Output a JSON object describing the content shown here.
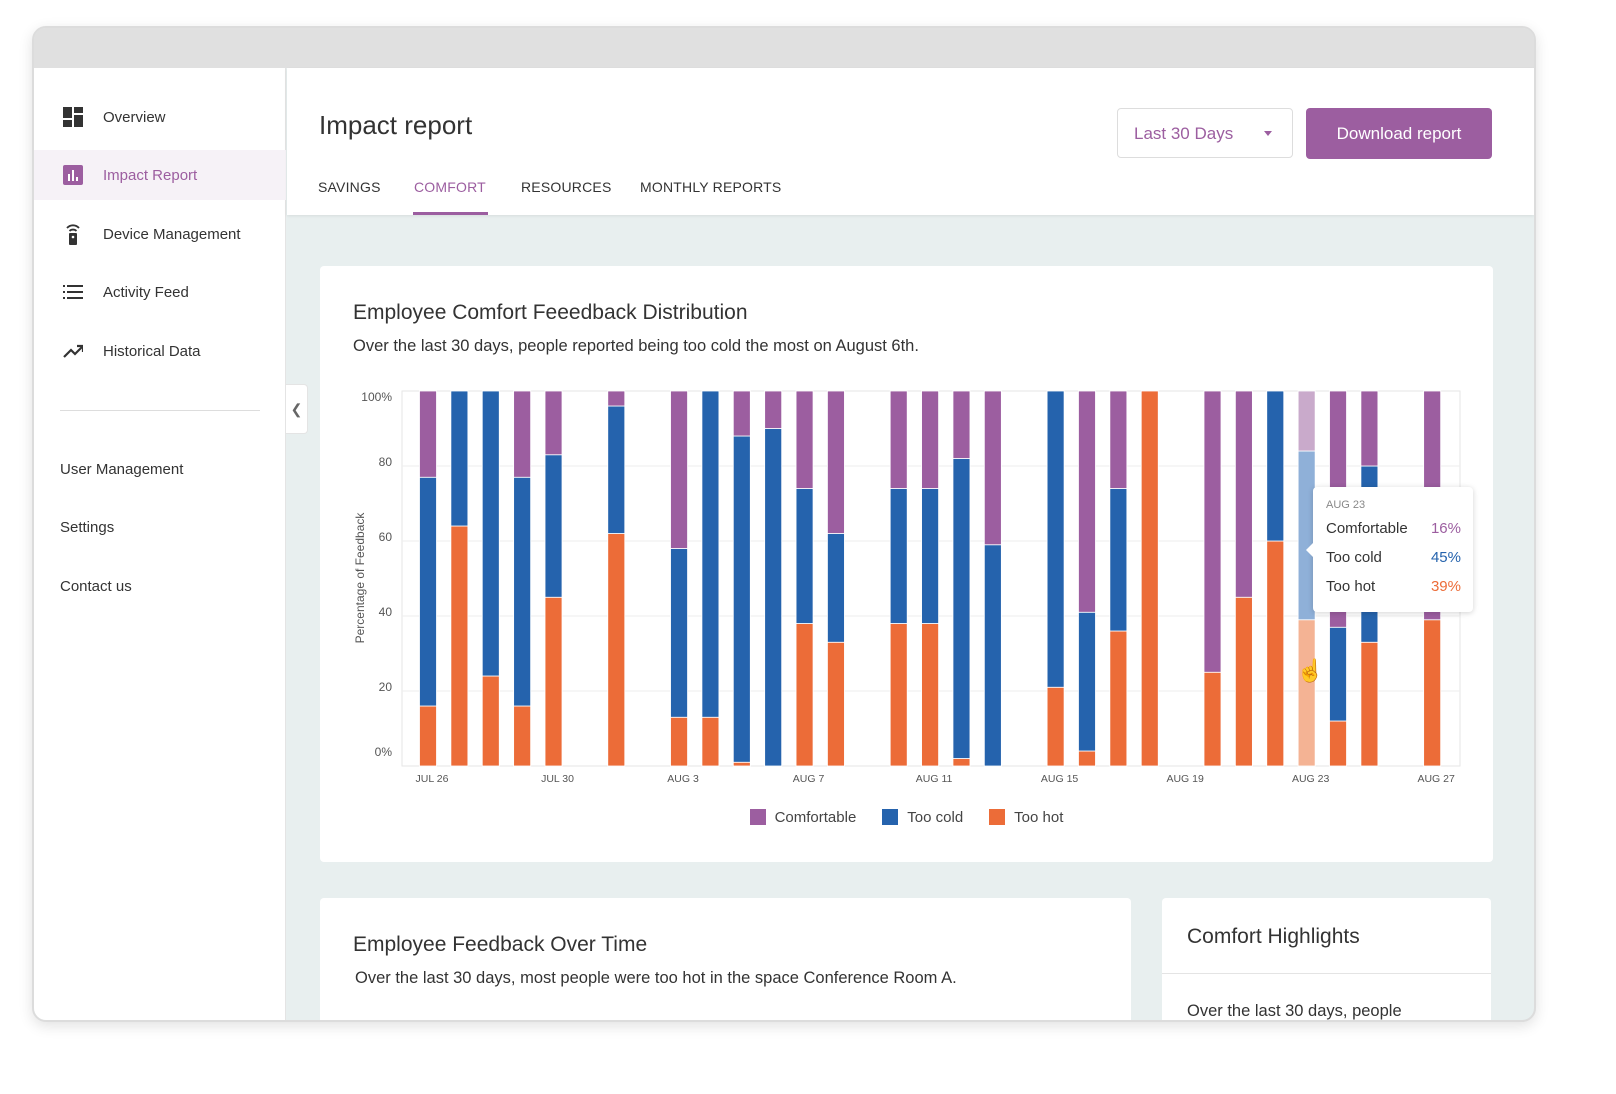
{
  "sidebar": {
    "items": [
      {
        "label": "Overview",
        "icon": "dashboard-icon"
      },
      {
        "label": "Impact Report",
        "icon": "bar-chart-icon",
        "active": true
      },
      {
        "label": "Device Management",
        "icon": "remote-icon"
      },
      {
        "label": "Activity Feed",
        "icon": "list-icon"
      },
      {
        "label": "Historical Data",
        "icon": "trending-icon"
      }
    ],
    "links": [
      "User Management",
      "Settings",
      "Contact us"
    ]
  },
  "header": {
    "title": "Impact report",
    "tabs": [
      "SAVINGS",
      "COMFORT",
      "RESOURCES",
      "MONTHLY REPORTS"
    ],
    "active_tab": "COMFORT",
    "range": "Last 30 Days",
    "download": "Download report"
  },
  "colors": {
    "accent": "#9c5ea0",
    "comfortable": "#9c5ea0",
    "too_cold": "#2563ad",
    "too_hot": "#ec6c38"
  },
  "card1": {
    "title": "Employee Comfort Feeedback Distribution",
    "subtitle": "Over the last 30 days, people reported being too cold the most on August 6th."
  },
  "chart_data": {
    "type": "bar",
    "stacked": true,
    "ylabel": "Percentage of Feedback",
    "ylim": [
      0,
      100
    ],
    "yticks": [
      "0%",
      "20",
      "40",
      "60",
      "80",
      "100%"
    ],
    "grid": true,
    "xticks": [
      "JUL 26",
      "JUL 30",
      "AUG 3",
      "AUG 7",
      "AUG 11",
      "AUG 15",
      "AUG 19",
      "AUG 23",
      "AUG 27"
    ],
    "categories": [
      "Jul 26",
      "Jul 27",
      "Jul 28",
      "Jul 29",
      "Jul 30",
      "Jul 31",
      "Aug 1",
      "Aug 2",
      "Aug 3",
      "Aug 4",
      "Aug 5",
      "Aug 6",
      "Aug 7",
      "Aug 8",
      "Aug 9",
      "Aug 10",
      "Aug 11",
      "Aug 12",
      "Aug 13",
      "Aug 14",
      "Aug 15",
      "Aug 16",
      "Aug 17",
      "Aug 18",
      "Aug 19",
      "Aug 20",
      "Aug 21",
      "Aug 22",
      "Aug 23",
      "Aug 24",
      "Aug 25",
      "Aug 26",
      "Aug 27"
    ],
    "series": [
      {
        "name": "Too hot",
        "values": [
          16,
          64,
          24,
          16,
          45,
          null,
          62,
          null,
          13,
          13,
          1,
          0,
          38,
          33,
          null,
          38,
          38,
          2,
          0,
          null,
          21,
          4,
          36,
          100,
          null,
          25,
          45,
          60,
          39,
          12,
          33,
          null,
          39
        ]
      },
      {
        "name": "Too cold",
        "values": [
          61,
          36,
          76,
          61,
          38,
          null,
          34,
          null,
          45,
          87,
          87,
          90,
          36,
          29,
          null,
          36,
          36,
          80,
          59,
          null,
          79,
          37,
          38,
          0,
          null,
          0,
          0,
          40,
          45,
          25,
          47,
          null,
          0
        ]
      },
      {
        "name": "Comfortable",
        "values": [
          23,
          0,
          0,
          23,
          17,
          null,
          4,
          null,
          42,
          0,
          12,
          10,
          26,
          38,
          null,
          26,
          26,
          18,
          41,
          null,
          0,
          59,
          26,
          0,
          null,
          75,
          55,
          0,
          16,
          63,
          20,
          null,
          61
        ]
      }
    ],
    "legend": [
      "Comfortable",
      "Too cold",
      "Too hot"
    ],
    "legend_position": "bottom",
    "highlighted": "Aug 23"
  },
  "tooltip": {
    "date": "AUG 23",
    "rows": [
      {
        "label": "Comfortable",
        "value": "16%"
      },
      {
        "label": "Too cold",
        "value": "45%"
      },
      {
        "label": "Too hot",
        "value": "39%"
      }
    ]
  },
  "card2": {
    "title": "Employee Feedback Over Time",
    "subtitle": "Over the last 30 days, most people were too hot in the space Conference Room A."
  },
  "card3": {
    "title": "Comfort Highlights",
    "text": "Over the last 30 days, people"
  }
}
